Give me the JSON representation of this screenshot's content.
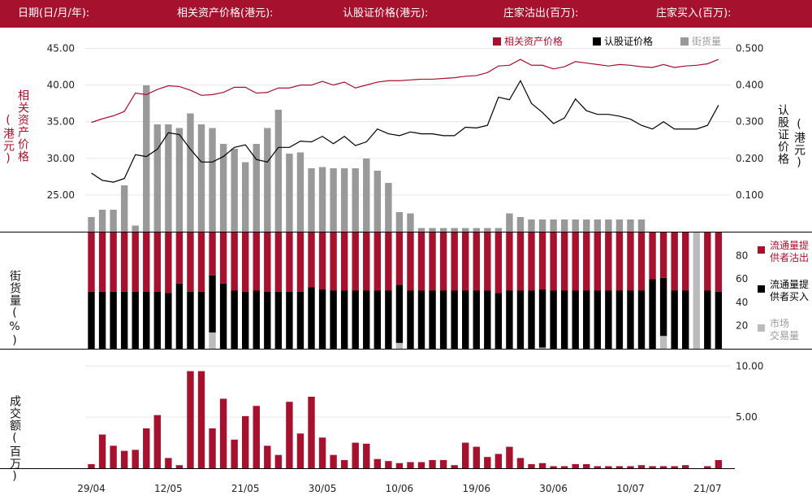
{
  "header": {
    "date_label": "日期(日/月/年):",
    "underlying_label": "相关资产价格(港元):",
    "warrant_label": "认股证价格(港元):",
    "sell_label": "庄家沽出(百万):",
    "buy_label": "庄家买入(百万):"
  },
  "colors": {
    "header_bg": "#a6112e",
    "underlying": "#a6112e",
    "warrant": "#000000",
    "outstanding": "#999999",
    "sell": "#a6112e",
    "buy": "#000000",
    "market": "#bbbbbb",
    "volume": "#a6112e"
  },
  "chart_data": [
    {
      "type": "line",
      "legend": {
        "placement": "top-right",
        "items": [
          "相关资产价格",
          "认股证价格",
          "街货量"
        ]
      },
      "left_axis": {
        "label_line1": "相关资产价格",
        "label_line2": "(港元)",
        "ylim": [
          20,
          47.5
        ],
        "ticks": [
          "25.00",
          "30.00",
          "35.00",
          "40.00",
          "45.00"
        ]
      },
      "right_axis": {
        "label_line1": "认股证价格",
        "label_line2": "(港元)",
        "ylim": [
          0,
          0.55
        ],
        "ticks": [
          "0.100",
          "0.200",
          "0.300",
          "0.400",
          "0.500"
        ]
      },
      "series": [
        {
          "name": "相关资产价格",
          "axis": "left",
          "values": [
            34.9,
            35.4,
            35.8,
            36.4,
            38.9,
            38.7,
            39.4,
            39.9,
            39.8,
            39.3,
            38.6,
            38.7,
            39.0,
            39.7,
            39.7,
            38.9,
            39.0,
            39.6,
            39.6,
            40.0,
            40.0,
            40.5,
            40.0,
            40.4,
            39.6,
            40.0,
            40.4,
            40.6,
            40.6,
            40.7,
            40.8,
            40.8,
            40.9,
            41.0,
            41.2,
            41.3,
            41.7,
            42.6,
            42.7,
            43.5,
            42.7,
            42.7,
            42.2,
            42.5,
            43.2,
            43.0,
            42.8,
            42.6,
            42.8,
            42.7,
            42.5,
            42.4,
            42.8,
            42.4,
            42.6,
            42.7,
            42.9,
            43.5
          ]
        },
        {
          "name": "认股证价格",
          "axis": "right",
          "values": [
            0.16,
            0.14,
            0.135,
            0.145,
            0.21,
            0.205,
            0.225,
            0.27,
            0.265,
            0.225,
            0.19,
            0.19,
            0.205,
            0.23,
            0.237,
            0.197,
            0.19,
            0.23,
            0.23,
            0.247,
            0.245,
            0.26,
            0.24,
            0.26,
            0.235,
            0.245,
            0.28,
            0.267,
            0.262,
            0.272,
            0.267,
            0.267,
            0.262,
            0.262,
            0.285,
            0.283,
            0.29,
            0.367,
            0.36,
            0.412,
            0.35,
            0.325,
            0.295,
            0.31,
            0.362,
            0.33,
            0.32,
            0.32,
            0.315,
            0.307,
            0.29,
            0.28,
            0.3,
            0.28,
            0.28,
            0.28,
            0.29,
            0.345
          ]
        },
        {
          "name": "街货量",
          "axis": "bars",
          "values": [
            12,
            18,
            18,
            38,
            5,
            120,
            88,
            88,
            85,
            97,
            88,
            85,
            72,
            68,
            57,
            72,
            85,
            100,
            64,
            65,
            52,
            53,
            52,
            52,
            52,
            60,
            50,
            40,
            16,
            15,
            3,
            3,
            3,
            3,
            3,
            3,
            3,
            3,
            15,
            12,
            10,
            10,
            10,
            10,
            10,
            10,
            10,
            10,
            10,
            10,
            10,
            0,
            0,
            0,
            0,
            0,
            0,
            0
          ]
        }
      ],
      "outstanding_scale_max": 100
    },
    {
      "type": "bar",
      "stacked": true,
      "axis_label": "街货量(%)",
      "ylim": [
        0,
        100
      ],
      "ticks": [
        "20",
        "40",
        "60",
        "80"
      ],
      "legend": [
        {
          "line1": "流通量提",
          "line2": "供者沽出"
        },
        {
          "line1": "流通量提",
          "line2": "供者买入"
        },
        {
          "line1": "市场",
          "line2": "交易量"
        }
      ],
      "series": [
        {
          "name": "流通量提供者买入",
          "values": [
            49,
            49,
            49,
            49,
            49,
            49,
            49,
            48,
            56,
            49,
            49,
            49,
            56,
            50,
            49,
            50,
            49,
            49,
            49,
            49,
            53,
            51,
            50,
            50,
            50,
            50,
            50,
            50,
            50,
            50,
            50,
            50,
            50,
            50,
            50,
            50,
            50,
            48,
            50,
            50,
            50,
            50,
            50,
            50,
            50,
            50,
            50,
            50,
            50,
            50,
            50,
            60,
            50,
            50,
            50,
            0,
            50,
            49
          ]
        },
        {
          "name": "市场交易量",
          "values": [
            0,
            0,
            0,
            0,
            0,
            0,
            0,
            0,
            0,
            0,
            0,
            14,
            0,
            0,
            0,
            0,
            0,
            0,
            0,
            0,
            0,
            0,
            0,
            0,
            0,
            0,
            0,
            0,
            5,
            0,
            0,
            0,
            0,
            0,
            0,
            0,
            0,
            0,
            0,
            0,
            0,
            1,
            0,
            0,
            0,
            0,
            0,
            0,
            0,
            0,
            0,
            0,
            11,
            0,
            0,
            100,
            0,
            0
          ]
        }
      ]
    },
    {
      "type": "bar",
      "axis_label": "成交额(百万)",
      "ylim": [
        0,
        10.5
      ],
      "ticks": [
        "5.00",
        "10.00"
      ],
      "x_ticks": [
        "29/04",
        "12/05",
        "21/05",
        "30/05",
        "10/06",
        "19/06",
        "30/06",
        "10/07",
        "21/07"
      ],
      "values": [
        0.4,
        3.3,
        2.2,
        1.7,
        1.8,
        3.9,
        5.2,
        1.0,
        0.3,
        9.5,
        9.5,
        3.9,
        6.8,
        2.8,
        5.1,
        6.1,
        2.2,
        1.3,
        6.5,
        3.4,
        7.0,
        3.0,
        1.3,
        0.8,
        2.5,
        2.4,
        0.9,
        0.7,
        0.5,
        0.6,
        0.6,
        0.8,
        0.8,
        0.3,
        2.5,
        2.1,
        1.1,
        1.4,
        2.1,
        1.0,
        0.4,
        0.5,
        0.2,
        0.2,
        0.4,
        0.4,
        0.2,
        0.2,
        0.2,
        0.2,
        0.3,
        0.2,
        0.2,
        0.2,
        0.3,
        0.0,
        0.2,
        0.8
      ]
    }
  ]
}
